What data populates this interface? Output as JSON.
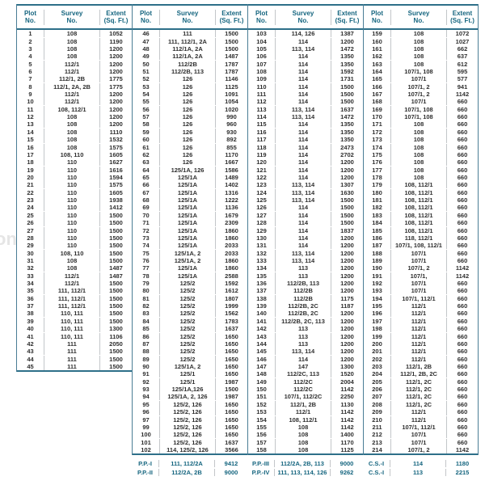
{
  "columns": {
    "plot": [
      "Plot",
      "No."
    ],
    "survey": [
      "Survey",
      "No."
    ],
    "extent": [
      "Extent",
      "(Sq. Ft.)"
    ]
  },
  "colors": {
    "accent": "#15657f",
    "rule": "#2e7089",
    "group_rule": "#4a7d95",
    "inner_rule": "#c3c6c9",
    "text": "#2f2f2f"
  },
  "watermark": "on",
  "groups": [
    {
      "rows": [
        [
          "1",
          "108",
          "1052"
        ],
        [
          "2",
          "108",
          "1190"
        ],
        [
          "3",
          "108",
          "1200"
        ],
        [
          "4",
          "108",
          "1200"
        ],
        [
          "5",
          "112/1",
          "1200"
        ],
        [
          "6",
          "112/1",
          "1200"
        ],
        [
          "7",
          "112/1, 2B",
          "1775"
        ],
        [
          "8",
          "112/1, 2A, 2B",
          "1775"
        ],
        [
          "9",
          "112/1",
          "1200"
        ],
        [
          "10",
          "112/1",
          "1200"
        ],
        [
          "11",
          "108, 112/1",
          "1200"
        ],
        [
          "12",
          "108",
          "1200"
        ],
        [
          "13",
          "108",
          "1200"
        ],
        [
          "14",
          "108",
          "1110"
        ],
        [
          "15",
          "108",
          "1532"
        ],
        [
          "16",
          "108",
          "1575"
        ],
        [
          "17",
          "108, 110",
          "1605"
        ],
        [
          "18",
          "110",
          "1627"
        ],
        [
          "19",
          "110",
          "1616"
        ],
        [
          "20",
          "110",
          "1594"
        ],
        [
          "21",
          "110",
          "1575"
        ],
        [
          "22",
          "110",
          "1605"
        ],
        [
          "23",
          "110",
          "1938"
        ],
        [
          "24",
          "110",
          "1412"
        ],
        [
          "25",
          "110",
          "1500"
        ],
        [
          "26",
          "110",
          "1500"
        ],
        [
          "27",
          "110",
          "1500"
        ],
        [
          "28",
          "110",
          "1500"
        ],
        [
          "29",
          "110",
          "1500"
        ],
        [
          "30",
          "108, 110",
          "1500"
        ],
        [
          "31",
          "108",
          "1500"
        ],
        [
          "32",
          "108",
          "1487"
        ],
        [
          "33",
          "112/1",
          "1487"
        ],
        [
          "34",
          "112/1",
          "1500"
        ],
        [
          "35",
          "111, 112/1",
          "1500"
        ],
        [
          "36",
          "111, 112/1",
          "1500"
        ],
        [
          "37",
          "111, 112/1",
          "1500"
        ],
        [
          "38",
          "110, 111",
          "1500"
        ],
        [
          "39",
          "110, 111",
          "1500"
        ],
        [
          "40",
          "110, 111",
          "1300"
        ],
        [
          "41",
          "110, 111",
          "1106"
        ],
        [
          "42",
          "111",
          "2050"
        ],
        [
          "43",
          "111",
          "1500"
        ],
        [
          "44",
          "111",
          "1500"
        ],
        [
          "45",
          "111",
          "1500"
        ]
      ],
      "footer": []
    },
    {
      "rows": [
        [
          "46",
          "111",
          "1500"
        ],
        [
          "47",
          "111, 112/1, 2A",
          "1500"
        ],
        [
          "48",
          "112/1A, 2A",
          "1500"
        ],
        [
          "49",
          "112/1A, 2A",
          "1487"
        ],
        [
          "50",
          "112/2B",
          "1787"
        ],
        [
          "51",
          "112/2B, 113",
          "1787"
        ],
        [
          "52",
          "126",
          "1146"
        ],
        [
          "53",
          "126",
          "1125"
        ],
        [
          "54",
          "126",
          "1091"
        ],
        [
          "55",
          "126",
          "1054"
        ],
        [
          "56",
          "126",
          "1020"
        ],
        [
          "57",
          "126",
          "990"
        ],
        [
          "58",
          "126",
          "960"
        ],
        [
          "59",
          "126",
          "930"
        ],
        [
          "60",
          "126",
          "892"
        ],
        [
          "61",
          "126",
          "855"
        ],
        [
          "62",
          "126",
          "1170"
        ],
        [
          "63",
          "126",
          "1667"
        ],
        [
          "64",
          "125/1A, 126",
          "1586"
        ],
        [
          "65",
          "125/1A",
          "1489"
        ],
        [
          "66",
          "125/1A",
          "1402"
        ],
        [
          "67",
          "125/1A",
          "1316"
        ],
        [
          "68",
          "125/1A",
          "1222"
        ],
        [
          "69",
          "125/1A",
          "1136"
        ],
        [
          "70",
          "125/1A",
          "1679"
        ],
        [
          "71",
          "125/1A",
          "2309"
        ],
        [
          "72",
          "125/1A",
          "1860"
        ],
        [
          "73",
          "125/1A",
          "1860"
        ],
        [
          "74",
          "125/1A",
          "2033"
        ],
        [
          "75",
          "125/1A, 2",
          "2033"
        ],
        [
          "76",
          "125/1A, 2",
          "1860"
        ],
        [
          "77",
          "125/1A",
          "1860"
        ],
        [
          "78",
          "125/1A",
          "2588"
        ],
        [
          "79",
          "125/2",
          "1592"
        ],
        [
          "80",
          "125/2",
          "1612"
        ],
        [
          "81",
          "125/2",
          "1807"
        ],
        [
          "82",
          "125/2",
          "1999"
        ],
        [
          "83",
          "125/2",
          "1562"
        ],
        [
          "84",
          "125/2",
          "1783"
        ],
        [
          "85",
          "125/2",
          "1637"
        ],
        [
          "86",
          "125/2",
          "1650"
        ],
        [
          "87",
          "125/2",
          "1650"
        ],
        [
          "88",
          "125/2",
          "1650"
        ],
        [
          "89",
          "125/2",
          "1650"
        ],
        [
          "90",
          "125/1A, 2",
          "1650"
        ],
        [
          "91",
          "125/1",
          "1650"
        ],
        [
          "92",
          "125/1",
          "1987"
        ],
        [
          "93",
          "125/1A,126",
          "1500"
        ],
        [
          "94",
          "125/1A, 2, 126",
          "1987"
        ],
        [
          "95",
          "125/2, 126",
          "1650"
        ],
        [
          "96",
          "125/2, 126",
          "1650"
        ],
        [
          "97",
          "125/2, 126",
          "1650"
        ],
        [
          "99",
          "125/2, 126",
          "1650"
        ],
        [
          "100",
          "125/2, 126",
          "1650"
        ],
        [
          "101",
          "125/2, 126",
          "1637"
        ],
        [
          "102",
          "114, 125/2, 126",
          "3566"
        ]
      ],
      "footer": [
        [
          "P.P.-I",
          "111, 112/2A",
          "9412"
        ],
        [
          "P.P.-II",
          "112/2A, 2B",
          "9000"
        ]
      ]
    },
    {
      "rows": [
        [
          "103",
          "114, 126",
          "1387"
        ],
        [
          "104",
          "114",
          "1200"
        ],
        [
          "105",
          "113, 114",
          "1472"
        ],
        [
          "106",
          "114",
          "1350"
        ],
        [
          "107",
          "114",
          "1350"
        ],
        [
          "108",
          "114",
          "1592"
        ],
        [
          "109",
          "114",
          "1731"
        ],
        [
          "110",
          "114",
          "1500"
        ],
        [
          "111",
          "114",
          "1500"
        ],
        [
          "112",
          "114",
          "1500"
        ],
        [
          "113",
          "113, 114",
          "1637"
        ],
        [
          "114",
          "113, 114",
          "1472"
        ],
        [
          "115",
          "114",
          "1350"
        ],
        [
          "116",
          "114",
          "1350"
        ],
        [
          "117",
          "114",
          "1350"
        ],
        [
          "118",
          "114",
          "2473"
        ],
        [
          "119",
          "114",
          "2702"
        ],
        [
          "120",
          "114",
          "1200"
        ],
        [
          "121",
          "114",
          "1200"
        ],
        [
          "122",
          "114",
          "1200"
        ],
        [
          "123",
          "113, 114",
          "1307"
        ],
        [
          "124",
          "113, 114",
          "1630"
        ],
        [
          "125",
          "113, 114",
          "1500"
        ],
        [
          "126",
          "114",
          "1500"
        ],
        [
          "127",
          "114",
          "1500"
        ],
        [
          "128",
          "114",
          "1500"
        ],
        [
          "129",
          "114",
          "1837"
        ],
        [
          "130",
          "114",
          "1200"
        ],
        [
          "131",
          "114",
          "1200"
        ],
        [
          "132",
          "113, 114",
          "1200"
        ],
        [
          "133",
          "113, 114",
          "1200"
        ],
        [
          "134",
          "113",
          "1200"
        ],
        [
          "135",
          "113",
          "1200"
        ],
        [
          "136",
          "112/2B, 113",
          "1200"
        ],
        [
          "137",
          "112/2B",
          "1200"
        ],
        [
          "138",
          "112/2B",
          "1175"
        ],
        [
          "139",
          "112/2B, 2C",
          "1187"
        ],
        [
          "140",
          "112/2B, 2C",
          "1200"
        ],
        [
          "141",
          "112/2B, 2C, 113",
          "1200"
        ],
        [
          "142",
          "113",
          "1200"
        ],
        [
          "143",
          "113",
          "1200"
        ],
        [
          "144",
          "113",
          "1200"
        ],
        [
          "145",
          "113, 114",
          "1200"
        ],
        [
          "146",
          "114",
          "1200"
        ],
        [
          "147",
          "147",
          "1300"
        ],
        [
          "148",
          "112/2C, 113",
          "1520"
        ],
        [
          "149",
          "112/2C",
          "2004"
        ],
        [
          "150",
          "112/2C",
          "1142"
        ],
        [
          "151",
          "107/1, 112/2C",
          "2250"
        ],
        [
          "152",
          "112/1, 2B",
          "1130"
        ],
        [
          "153",
          "112/1",
          "1142"
        ],
        [
          "154",
          "108, 112/1",
          "1142"
        ],
        [
          "155",
          "108",
          "1142"
        ],
        [
          "156",
          "108",
          "1400"
        ],
        [
          "157",
          "108",
          "1170"
        ],
        [
          "158",
          "108",
          "1125"
        ]
      ],
      "footer": [
        [
          "P.P.-III",
          "112/2A, 2B, 113",
          "9000"
        ],
        [
          "P.P.-IV",
          "111, 113, 114, 126",
          "9262"
        ]
      ]
    },
    {
      "rows": [
        [
          "159",
          "108",
          "1072"
        ],
        [
          "160",
          "108",
          "1027"
        ],
        [
          "161",
          "108",
          "662"
        ],
        [
          "162",
          "108",
          "637"
        ],
        [
          "163",
          "108",
          "612"
        ],
        [
          "164",
          "107/1, 108",
          "595"
        ],
        [
          "165",
          "107/1",
          "577"
        ],
        [
          "166",
          "107/1, 2",
          "941"
        ],
        [
          "167",
          "107/1, 2",
          "1142"
        ],
        [
          "168",
          "107/1",
          "660"
        ],
        [
          "169",
          "107/1, 108",
          "660"
        ],
        [
          "170",
          "107/1, 108",
          "660"
        ],
        [
          "171",
          "108",
          "660"
        ],
        [
          "172",
          "108",
          "660"
        ],
        [
          "173",
          "108",
          "660"
        ],
        [
          "174",
          "108",
          "660"
        ],
        [
          "175",
          "108",
          "660"
        ],
        [
          "176",
          "108",
          "660"
        ],
        [
          "177",
          "108",
          "660"
        ],
        [
          "178",
          "108",
          "660"
        ],
        [
          "179",
          "108, 112/1",
          "660"
        ],
        [
          "180",
          "108, 112/1",
          "660"
        ],
        [
          "181",
          "108, 112/1",
          "660"
        ],
        [
          "182",
          "108, 112/1",
          "660"
        ],
        [
          "183",
          "108, 112/1",
          "660"
        ],
        [
          "184",
          "108, 112/1",
          "660"
        ],
        [
          "185",
          "108, 112/1",
          "660"
        ],
        [
          "186",
          "118, 112/1",
          "660"
        ],
        [
          "187",
          "107/1, 108, 112/1",
          "660"
        ],
        [
          "188",
          "107/1",
          "660"
        ],
        [
          "189",
          "107/1",
          "660"
        ],
        [
          "190",
          "107/1, 2",
          "1142"
        ],
        [
          "191",
          "107/1,",
          "1142"
        ],
        [
          "192",
          "107/1",
          "660"
        ],
        [
          "193",
          "107/1",
          "660"
        ],
        [
          "194",
          "107/1, 112/1",
          "660"
        ],
        [
          "195",
          "112/1",
          "660"
        ],
        [
          "196",
          "112/1",
          "660"
        ],
        [
          "197",
          "112/1",
          "660"
        ],
        [
          "198",
          "112/1",
          "660"
        ],
        [
          "199",
          "112/1",
          "660"
        ],
        [
          "200",
          "112/1",
          "660"
        ],
        [
          "201",
          "112/1",
          "660"
        ],
        [
          "202",
          "112/1",
          "660"
        ],
        [
          "203",
          "112/1, 2B",
          "660"
        ],
        [
          "204",
          "112/1, 2B, 2C",
          "660"
        ],
        [
          "205",
          "112/1, 2C",
          "660"
        ],
        [
          "206",
          "112/1, 2C",
          "660"
        ],
        [
          "207",
          "112/1, 2C",
          "660"
        ],
        [
          "208",
          "112/1, 2C",
          "660"
        ],
        [
          "209",
          "112/1",
          "660"
        ],
        [
          "210",
          "112/1",
          "660"
        ],
        [
          "211",
          "107/1, 112/1",
          "660"
        ],
        [
          "212",
          "107/1",
          "660"
        ],
        [
          "213",
          "107/1",
          "660"
        ],
        [
          "214",
          "107/1, 2",
          "1142"
        ]
      ],
      "footer": [
        [
          "C.S.-I",
          "114",
          "1180"
        ],
        [
          "C.S.-I",
          "113",
          "2215"
        ]
      ]
    }
  ]
}
